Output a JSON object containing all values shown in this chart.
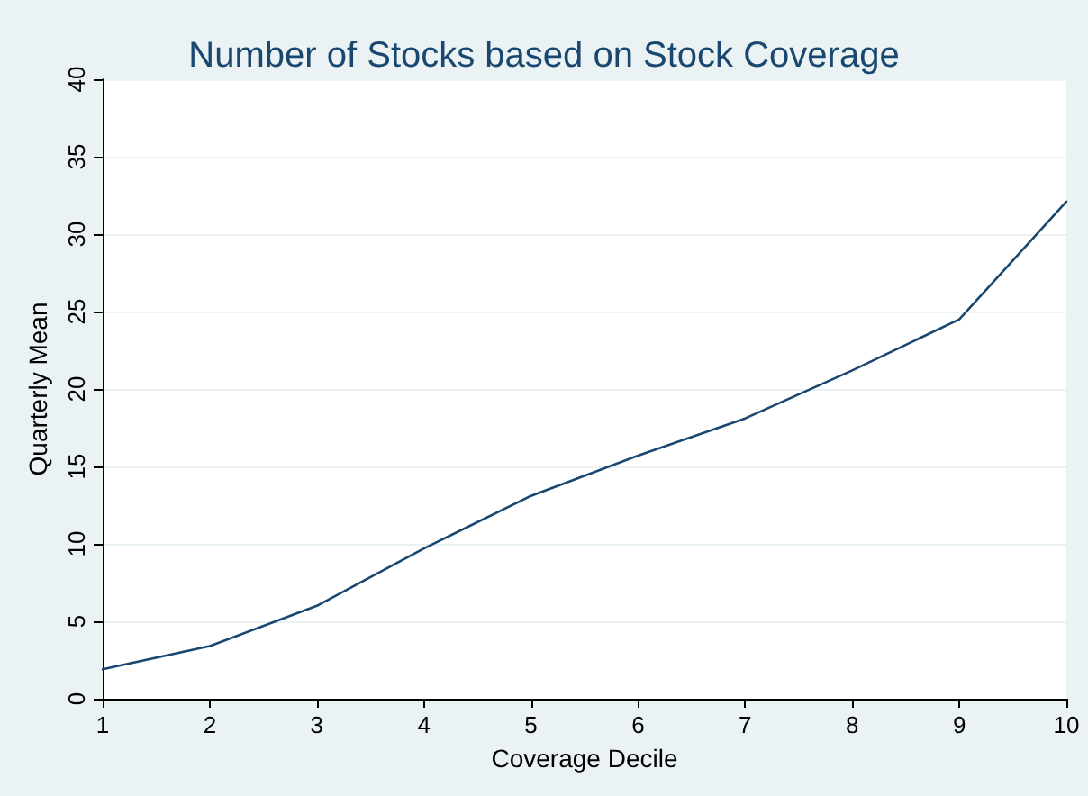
{
  "chart_data": {
    "type": "line",
    "title": "Number of Stocks based on Stock Coverage",
    "xlabel": "Coverage Decile",
    "ylabel": "Quarterly Mean",
    "x": [
      1,
      2,
      3,
      4,
      5,
      6,
      7,
      8,
      9,
      10
    ],
    "series": [
      {
        "color": "#1a476f",
        "values": [
          1.9,
          3.4,
          6.0,
          9.7,
          13.1,
          15.7,
          18.1,
          21.2,
          24.5,
          32.1
        ]
      }
    ],
    "xlim": [
      1,
      10
    ],
    "xticks": [
      1,
      2,
      3,
      4,
      5,
      6,
      7,
      8,
      9,
      10
    ],
    "ylim": [
      0,
      40
    ],
    "yticks": [
      0,
      5,
      10,
      15,
      20,
      25,
      30,
      35,
      40
    ],
    "grid": "y",
    "marker": "none",
    "line_style": "solid"
  }
}
